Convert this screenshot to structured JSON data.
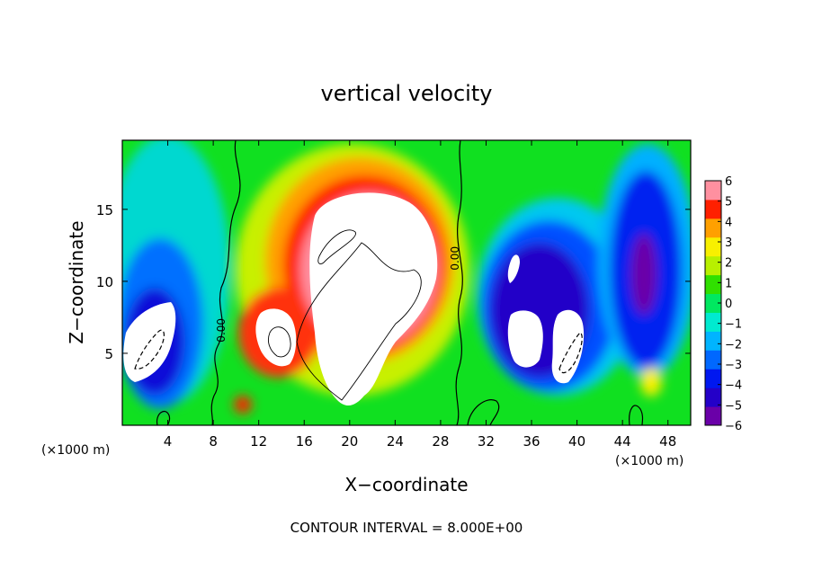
{
  "chart_data": {
    "type": "heatmap",
    "title": "vertical velocity",
    "xlabel": "X−coordinate",
    "ylabel": "Z−coordinate",
    "x_unit_left": "(×1000 m)",
    "x_unit_right": "(×1000 m)",
    "footer": "CONTOUR INTERVAL = 8.000E+00",
    "xlim": [
      0,
      50
    ],
    "ylim": [
      0,
      19.8
    ],
    "xticks": [
      4,
      8,
      12,
      16,
      20,
      24,
      28,
      32,
      36,
      40,
      44,
      48
    ],
    "xtick_labels": [
      "4",
      "8",
      "12",
      "16",
      "20",
      "24",
      "28",
      "32",
      "36",
      "40",
      "44",
      "48"
    ],
    "yticks": [
      5,
      10,
      15
    ],
    "ytick_labels": [
      "5",
      "10",
      "15"
    ],
    "colorbar": {
      "min": -6,
      "max": 6,
      "ticks": [
        6,
        5,
        4,
        3,
        2,
        1,
        0,
        -1,
        -2,
        -3,
        -4,
        -5,
        -6
      ],
      "tick_labels": [
        "6",
        "5",
        "4",
        "3",
        "2",
        "1",
        "0",
        "−1",
        "−2",
        "−3",
        "−4",
        "−5",
        "−6"
      ],
      "colors": [
        "#6a00a8",
        "#2400c8",
        "#0018f0",
        "#0068ff",
        "#00b4ff",
        "#00ead0",
        "#00e860",
        "#30e000",
        "#b8f000",
        "#f8f000",
        "#ffa000",
        "#ff2000",
        "#ff90a0"
      ]
    },
    "contour_labels": [
      {
        "text": "0.00",
        "x": 9.0,
        "y": 6.6,
        "rotation": -90
      },
      {
        "text": "0.00",
        "x": 29.6,
        "y": 11.6,
        "rotation": -90
      }
    ],
    "features": [
      {
        "kind": "updraft",
        "x": 20.5,
        "z": 10.5,
        "wmax": 6
      },
      {
        "kind": "updraft",
        "x": 13.0,
        "z": 6.2,
        "wmax": 6
      },
      {
        "kind": "downdraft",
        "x": 3.0,
        "z": 6.0,
        "wmin": -6
      },
      {
        "kind": "downdraft",
        "x": 36.5,
        "z": 9.5,
        "wmin": -6
      },
      {
        "kind": "downdraft",
        "x": 39.0,
        "z": 5.5,
        "wmin": -6
      },
      {
        "kind": "downdraft",
        "x": 46.0,
        "z": 11.0,
        "wmin": -5
      },
      {
        "kind": "downdraft",
        "x": 4.0,
        "z": 11.0,
        "wmin": -3
      },
      {
        "kind": "updraft",
        "x": 46.2,
        "z": 3.2,
        "wmax": 2
      }
    ]
  }
}
